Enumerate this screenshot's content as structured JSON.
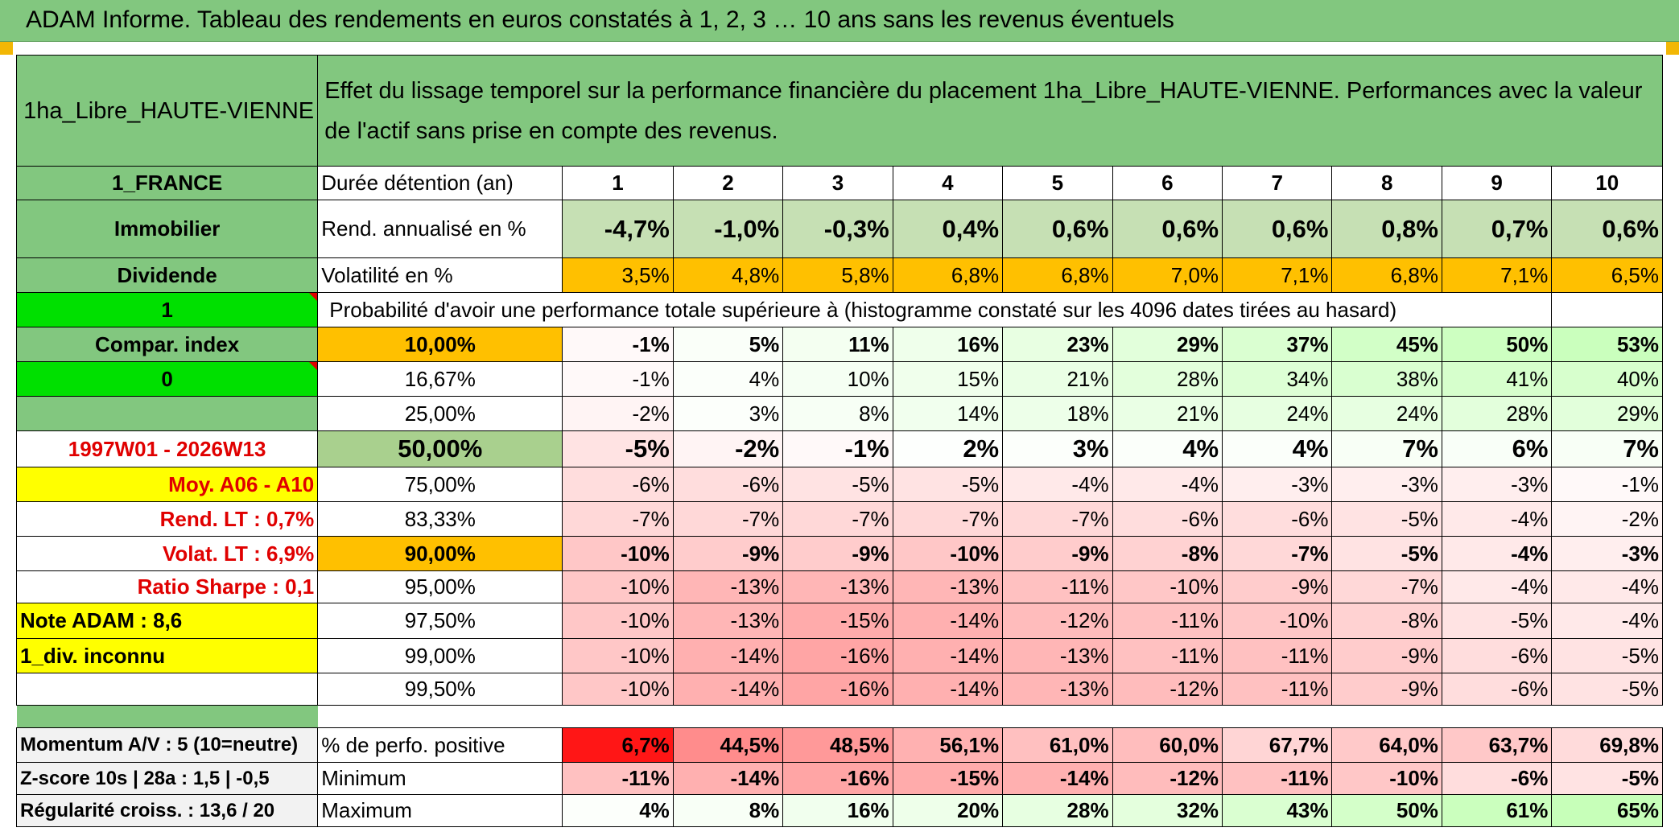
{
  "title": "ADAM Informe. Tableau des rendements en euros constatés à 1, 2, 3 … 10 ans sans les revenus éventuels",
  "header": {
    "asset": "1ha_Libre_HAUTE-VIENNE",
    "description": "Effet du lissage temporel sur la performance financière du placement 1ha_Libre_HAUTE-VIENNE. Performances avec la valeur de l'actif sans prise en compte des revenus."
  },
  "left_labels": {
    "country": "1_FRANCE",
    "category": "Immobilier",
    "dividend": "Dividende",
    "value_1": "1",
    "compar_index": "Compar. index",
    "value_0": "0",
    "period": "1997W01 - 2026W13",
    "moy": "Moy. A06 - A10",
    "rend_lt": "Rend. LT :   0,7%",
    "volat_lt": "Volat. LT :   6,9%",
    "ratio_sharpe": "Ratio Sharpe :    0,1",
    "note_adam": "Note ADAM : 8,6",
    "div_inconnu": "1_div. inconnu",
    "momentum": "Momentum A/V : 5 (10=neutre)",
    "zscore": "Z-score 10s | 28a : 1,5 | -0,5",
    "regularite": "Régularité croiss. : 13,6 / 20"
  },
  "row_labels": {
    "duree": "Durée détention (an)",
    "rend": "Rend. annualisé en %",
    "volat": "Volatilité en %",
    "proba": "Probabilité d'avoir une performance totale supérieure à (histogramme constaté sur les 4096 dates tirées au hasard)",
    "perf_pos": "% de perfo. positive",
    "minimum": "Minimum",
    "maximum": "Maximum"
  },
  "years": [
    "1",
    "2",
    "3",
    "4",
    "5",
    "6",
    "7",
    "8",
    "9",
    "10"
  ],
  "rend": [
    "-4,7%",
    "-1,0%",
    "-0,3%",
    "0,4%",
    "0,6%",
    "0,6%",
    "0,6%",
    "0,8%",
    "0,7%",
    "0,6%"
  ],
  "volat": [
    "3,5%",
    "4,8%",
    "5,8%",
    "6,8%",
    "6,8%",
    "7,0%",
    "7,1%",
    "6,8%",
    "7,1%",
    "6,5%"
  ],
  "percentiles": [
    {
      "label": "10,00%",
      "values": [
        "-1%",
        "5%",
        "11%",
        "16%",
        "23%",
        "29%",
        "37%",
        "45%",
        "50%",
        "53%"
      ]
    },
    {
      "label": "16,67%",
      "values": [
        "-1%",
        "4%",
        "10%",
        "15%",
        "21%",
        "28%",
        "34%",
        "38%",
        "41%",
        "40%"
      ]
    },
    {
      "label": "25,00%",
      "values": [
        "-2%",
        "3%",
        "8%",
        "14%",
        "18%",
        "21%",
        "24%",
        "24%",
        "28%",
        "29%"
      ]
    },
    {
      "label": "50,00%",
      "values": [
        "-5%",
        "-2%",
        "-1%",
        "2%",
        "3%",
        "4%",
        "4%",
        "7%",
        "6%",
        "7%"
      ]
    },
    {
      "label": "75,00%",
      "values": [
        "-6%",
        "-6%",
        "-5%",
        "-5%",
        "-4%",
        "-4%",
        "-3%",
        "-3%",
        "-3%",
        "-1%"
      ]
    },
    {
      "label": "83,33%",
      "values": [
        "-7%",
        "-7%",
        "-7%",
        "-7%",
        "-7%",
        "-6%",
        "-6%",
        "-5%",
        "-4%",
        "-2%"
      ]
    },
    {
      "label": "90,00%",
      "values": [
        "-10%",
        "-9%",
        "-9%",
        "-10%",
        "-9%",
        "-8%",
        "-7%",
        "-5%",
        "-4%",
        "-3%"
      ]
    },
    {
      "label": "95,00%",
      "values": [
        "-10%",
        "-13%",
        "-13%",
        "-13%",
        "-11%",
        "-10%",
        "-9%",
        "-7%",
        "-4%",
        "-4%"
      ]
    },
    {
      "label": "97,50%",
      "values": [
        "-10%",
        "-13%",
        "-15%",
        "-14%",
        "-12%",
        "-11%",
        "-10%",
        "-8%",
        "-5%",
        "-4%"
      ]
    },
    {
      "label": "99,00%",
      "values": [
        "-10%",
        "-14%",
        "-16%",
        "-14%",
        "-13%",
        "-11%",
        "-11%",
        "-9%",
        "-6%",
        "-5%"
      ]
    },
    {
      "label": "99,50%",
      "values": [
        "-10%",
        "-14%",
        "-16%",
        "-14%",
        "-13%",
        "-12%",
        "-11%",
        "-9%",
        "-6%",
        "-5%"
      ]
    }
  ],
  "perf_pos": [
    "6,7%",
    "44,5%",
    "48,5%",
    "56,1%",
    "61,0%",
    "60,0%",
    "67,7%",
    "64,0%",
    "63,7%",
    "69,8%"
  ],
  "minimum": [
    "-11%",
    "-14%",
    "-16%",
    "-15%",
    "-14%",
    "-12%",
    "-11%",
    "-10%",
    "-6%",
    "-5%"
  ],
  "maximum": [
    "4%",
    "8%",
    "16%",
    "20%",
    "28%",
    "32%",
    "43%",
    "50%",
    "61%",
    "65%"
  ],
  "colors": {
    "header_green": "#82c77f",
    "light_green": "#c6e0b4",
    "bright_green": "#00e000",
    "orange": "#ffc000",
    "yellow": "#ffff00",
    "label_red": "#e00000"
  }
}
